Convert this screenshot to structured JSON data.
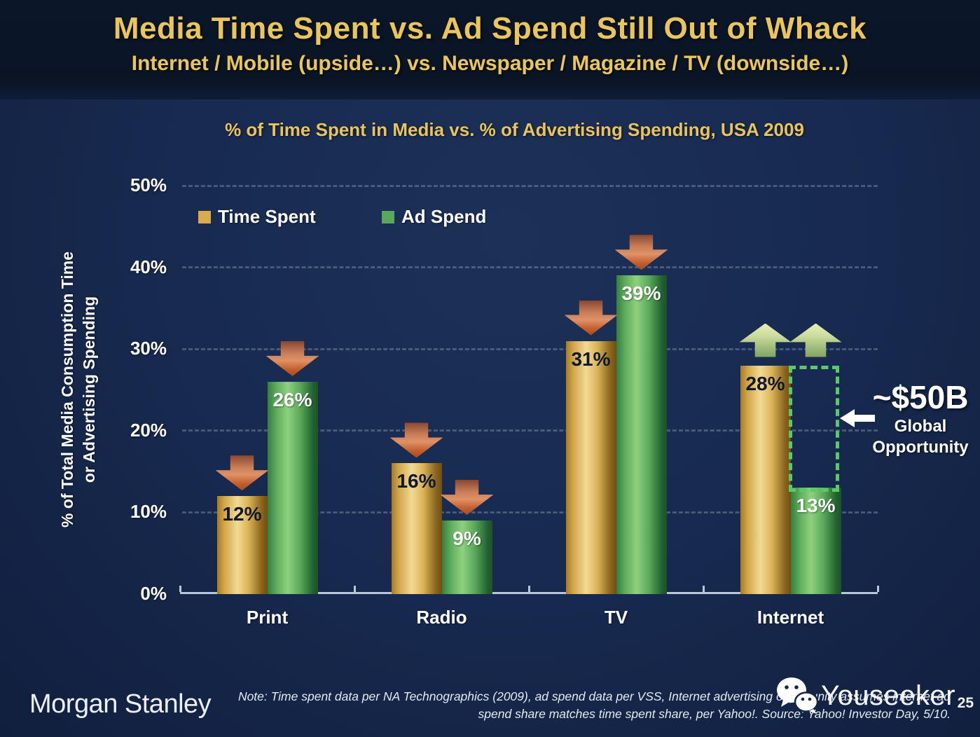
{
  "slide": {
    "title": "Media Time Spent vs. Ad Spend Still Out of Whack",
    "subtitle": "Internet / Mobile (upside…) vs. Newspaper / Magazine / TV (downside…)",
    "brand": "Morgan Stanley",
    "watermark": "Youseeker",
    "page_number": "25",
    "note_line1": "Note: Time spent data per NA Technographics (2009), ad spend data per VSS, Internet advertising opportunity assumes internet ad",
    "note_line2": "spend share matches time spent share, per Yahoo!. Source: Yahoo! Investor Day, 5/10."
  },
  "chart_data": {
    "type": "bar",
    "title": "% of Time Spent in Media vs. % of Advertising Spending, USA 2009",
    "categories": [
      "Print",
      "Radio",
      "TV",
      "Internet"
    ],
    "series": [
      {
        "name": "Time Spent",
        "color": "#d9ab4a",
        "values": [
          12,
          16,
          31,
          28
        ]
      },
      {
        "name": "Ad Spend",
        "color": "#5aa85c",
        "values": [
          26,
          9,
          39,
          13
        ]
      }
    ],
    "value_labels": [
      [
        "12%",
        "16%",
        "31%",
        "28%"
      ],
      [
        "26%",
        "9%",
        "39%",
        "13%"
      ]
    ],
    "trends": [
      [
        "down",
        "down"
      ],
      [
        "down",
        "down"
      ],
      [
        "down",
        "down"
      ],
      [
        "up",
        "up"
      ]
    ],
    "ylabel_line1": "% of Total Media Consumption Time",
    "ylabel_line2": "or Advertising Spending",
    "ylim": [
      0,
      50
    ],
    "yticks": [
      "50%",
      "40%",
      "30%",
      "20%",
      "10%",
      "0%"
    ],
    "grid": "dashed horizontal gridlines",
    "legend_position": "top-left inside plot",
    "opportunity": {
      "category": "Internet",
      "from_value": 28,
      "to_value": 13,
      "label": "~$50B",
      "sub_label_1": "Global",
      "sub_label_2": "Opportunity"
    }
  },
  "colors": {
    "background": "#17294e",
    "title_band": "#0a1527",
    "gold_text": "#eac55e",
    "bar_gold": "#d9ab4a",
    "bar_green": "#5aa85c",
    "arrow_down": "#c2602f",
    "arrow_up": "#b9cf8e",
    "opportunity_border": "#5ac96a",
    "axis": "#b9c5d8"
  }
}
